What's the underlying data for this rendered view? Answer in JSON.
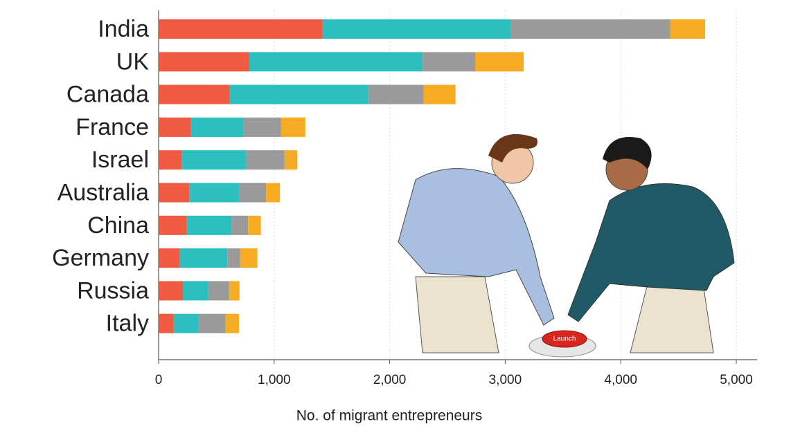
{
  "chart_data": {
    "type": "stacked-barh",
    "categories": [
      "India",
      "UK",
      "Canada",
      "France",
      "Israel",
      "Australia",
      "China",
      "Germany",
      "Russia",
      "Italy"
    ],
    "series": [
      {
        "color": "#ef5a40",
        "values": [
          1420,
          785,
          615,
          280,
          200,
          265,
          240,
          180,
          210,
          130
        ]
      },
      {
        "color": "#2bbfbf",
        "values": [
          1625,
          1500,
          1200,
          455,
          555,
          430,
          390,
          415,
          220,
          215
        ]
      },
      {
        "color": "#9a9a9a",
        "values": [
          1385,
          455,
          480,
          325,
          335,
          235,
          145,
          110,
          180,
          235
        ]
      },
      {
        "color": "#f7ab22",
        "values": [
          300,
          420,
          275,
          210,
          110,
          120,
          110,
          150,
          90,
          115
        ]
      }
    ],
    "xlim": [
      0,
      5000
    ],
    "xticks": [
      0,
      {
        "value": 1000,
        "label": "1,000"
      },
      {
        "value": 2000,
        "label": "2,000"
      },
      {
        "value": 3000,
        "label": "3,000"
      },
      {
        "value": 4000,
        "label": "4,000"
      },
      {
        "value": 5000,
        "label": "5,000"
      }
    ],
    "xlabel": "No. of migrant entrepreneurs",
    "grid": true,
    "annotations": [
      "Launch"
    ]
  }
}
